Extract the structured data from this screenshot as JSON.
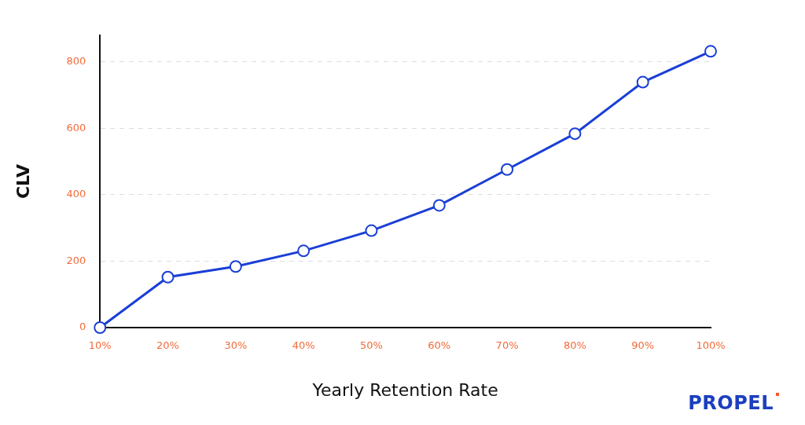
{
  "chart_data": {
    "type": "line",
    "x_label": "Yearly Retention Rate",
    "y_label": "CLV",
    "categories": [
      "10%",
      "20%",
      "30%",
      "40%",
      "50%",
      "60%",
      "70%",
      "80%",
      "90%",
      "100%"
    ],
    "values": [
      0,
      152,
      184,
      231,
      292,
      368,
      476,
      584,
      739,
      832
    ],
    "color": "#1a3fd6",
    "marker": "circle",
    "ylim": [
      0,
      880
    ],
    "yticks": [
      0,
      200,
      400,
      600,
      800
    ],
    "grid": true,
    "annotations": [
      "PROPEL"
    ]
  }
}
